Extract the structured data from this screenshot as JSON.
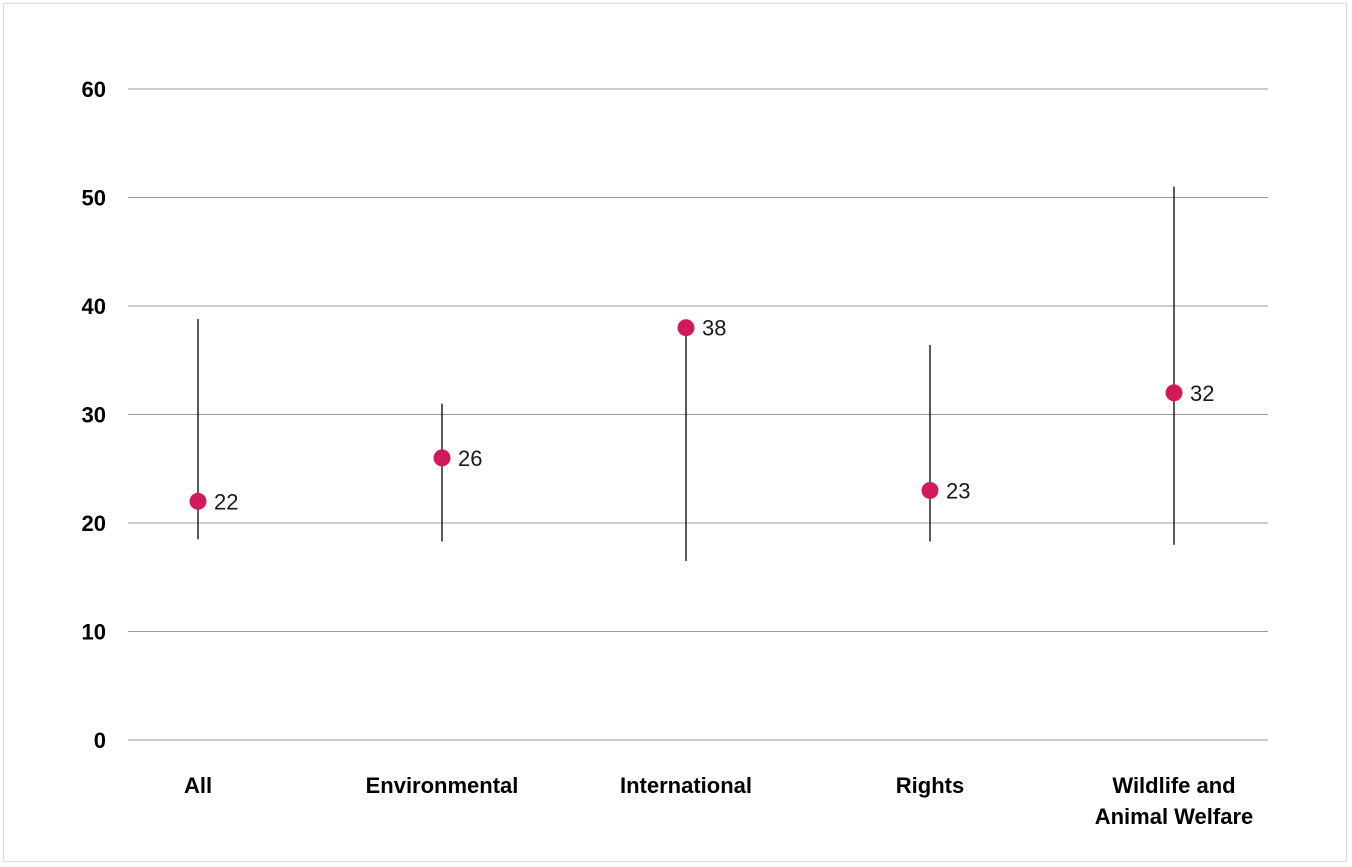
{
  "chart_data": {
    "type": "scatter",
    "title": "",
    "xlabel": "",
    "ylabel": "",
    "ylim": [
      0,
      60
    ],
    "yticks": [
      "0",
      "10",
      "20",
      "30",
      "40",
      "50",
      "60"
    ],
    "grid": true,
    "categories": [
      [
        "All"
      ],
      [
        "Environmental"
      ],
      [
        "International"
      ],
      [
        "Rights"
      ],
      [
        "Wildlife and",
        "Animal Welfare"
      ]
    ],
    "series": [
      {
        "values": [
          22,
          26,
          38,
          23,
          32
        ],
        "labels": [
          "22",
          "26",
          "38",
          "23",
          "32"
        ],
        "low": [
          18.5,
          18.3,
          16.5,
          18.3,
          18
        ],
        "high": [
          38.8,
          31,
          38,
          36.4,
          51
        ]
      }
    ],
    "colors": {
      "point": "#d11a5a",
      "whisker": "#000000",
      "grid": "#9a9a9a"
    }
  }
}
